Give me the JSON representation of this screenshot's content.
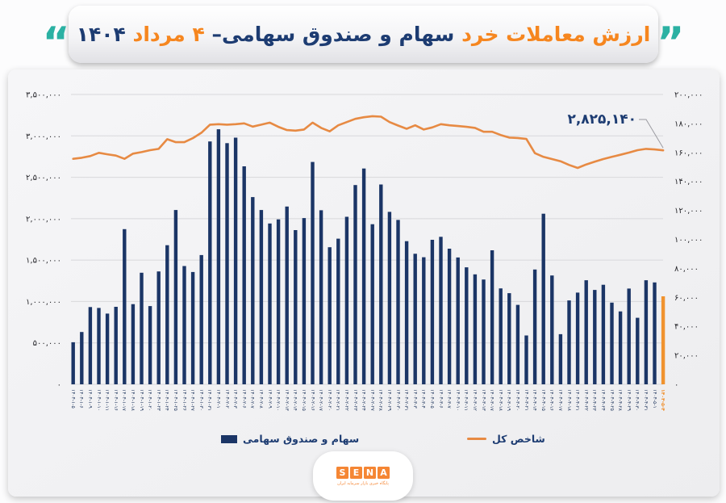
{
  "title": {
    "quote_left_glyph": "“",
    "quote_right_glyph": "”",
    "part_value": "ارزش معاملات خرد",
    "part_subject": "سهام و صندوق سهامی–",
    "part_date": "۴ مرداد",
    "part_year": "۱۴۰۴"
  },
  "legend": {
    "bars_label": "سهام و صندوق سهامی",
    "line_label": "شاخص کل"
  },
  "logo": {
    "letters": [
      "S",
      "E",
      "N",
      "A"
    ],
    "tagline": "پایگاه خبری بازار سرمایه ایران"
  },
  "colors": {
    "bar": "#1b3566",
    "bar_highlight": "#f0932f",
    "line": "#e78a43",
    "navy": "#1d3c72",
    "orange": "#f6861f",
    "teal": "#2bb1a3",
    "grid": "#d8d8db"
  },
  "chart_data": {
    "type": "bar+line",
    "title": "ارزش معاملات خرد سهام و صندوق سهامی - ۴ مرداد ۱۴۰۴",
    "grid": true,
    "legend_position": "bottom",
    "x": [
      "۱۴۰۴-۱-۵",
      "۱۴۰۴-۱-۶",
      "۱۴۰۴-۱-۹",
      "۱۴۰۴-۱-۱۰",
      "۱۴۰۴-۱-۱۱",
      "۱۴۰۴-۱-۱۶",
      "۱۴۰۴-۱-۱۷",
      "۱۴۰۴-۱-۱۸",
      "۱۴۰۴-۱-۱۹",
      "۱۴۰۴-۱-۲۰",
      "۱۴۰۴-۱-۲۳",
      "۱۴۰۴-۱-۲۴",
      "۱۴۰۴-۱-۲۵",
      "۱۴۰۴-۱-۲۶",
      "۱۴۰۴-۱-۲۷",
      "۱۴۰۴-۱-۳۰",
      "۱۴۰۴-۱-۳۱",
      "۱۴۰۴-۲-۱",
      "۱۴۰۴-۲-۲",
      "۱۴۰۴-۲-۳",
      "۱۴۰۴-۲-۶",
      "۱۴۰۴-۲-۷",
      "۱۴۰۴-۲-۸",
      "۱۴۰۴-۲-۹",
      "۱۴۰۴-۲-۱۰",
      "۱۴۰۴-۲-۱۳",
      "۱۴۰۴-۲-۱۴",
      "۱۴۰۴-۲-۱۵",
      "۱۴۰۴-۲-۱۶",
      "۱۴۰۴-۲-۱۷",
      "۱۴۰۴-۲-۲۰",
      "۱۴۰۴-۲-۲۱",
      "۱۴۰۴-۲-۲۲",
      "۱۴۰۴-۲-۲۳",
      "۱۴۰۴-۲-۲۴",
      "۱۴۰۴-۲-۲۷",
      "۱۴۰۴-۲-۲۸",
      "۱۴۰۴-۲-۲۹",
      "۱۴۰۴-۲-۳۰",
      "۱۴۰۴-۲-۳۱",
      "۱۴۰۴-۳-۳",
      "۱۴۰۴-۳-۴",
      "۱۴۰۴-۳-۵",
      "۱۴۰۴-۳-۶",
      "۱۴۰۴-۳-۷",
      "۱۴۰۴-۳-۱۰",
      "۱۴۰۴-۳-۱۱",
      "۱۴۰۴-۳-۱۲",
      "۱۴۰۴-۳-۱۳",
      "۱۴۰۴-۳-۱۷",
      "۱۴۰۴-۳-۱۸",
      "۱۴۰۴-۳-۱۹",
      "۱۴۰۴-۳-۲۰",
      "۱۴۰۴-۳-۲۱",
      "۱۴۰۴-۴-۱۴",
      "۱۴۰۴-۴-۱۵",
      "۱۴۰۴-۴-۱۶",
      "۱۴۰۴-۴-۱۷",
      "۱۴۰۴-۴-۱۸",
      "۱۴۰۴-۴-۲۱",
      "۱۴۰۴-۴-۲۲",
      "۱۴۰۴-۴-۲۳",
      "۱۴۰۴-۴-۲۴",
      "۱۴۰۴-۴-۲۵",
      "۱۴۰۴-۴-۲۸",
      "۱۴۰۴-۴-۲۹",
      "۱۴۰۴-۴-۳۰",
      "۱۴۰۴-۴-۳۱",
      "۱۴۰۴-۵-۱",
      "۱۴۰۴-۵-۴"
    ],
    "series": [
      {
        "name": "سهام و صندوق سهامی",
        "type": "bar",
        "axis": "right",
        "values": [
          29000,
          36100,
          53300,
          52700,
          48800,
          53500,
          107100,
          55300,
          77000,
          54000,
          77900,
          96000,
          120300,
          81600,
          77500,
          89200,
          167600,
          176000,
          166400,
          170200,
          150400,
          129200,
          120300,
          111000,
          113800,
          122700,
          106400,
          114700,
          153400,
          120100,
          94600,
          100500,
          115600,
          137500,
          148900,
          110500,
          137900,
          119000,
          113400,
          98800,
          90100,
          87700,
          99700,
          101800,
          93600,
          87500,
          80700,
          75900,
          72300,
          92500,
          66200,
          62900,
          54800,
          33700,
          79200,
          117700,
          75100,
          34600,
          57900,
          63300,
          71800,
          65100,
          68700,
          56400,
          50300,
          66100,
          45900,
          71800,
          70300,
          60700
        ]
      },
      {
        "name": "شاخص کل",
        "type": "line",
        "axis": "left",
        "values": [
          2723000,
          2736000,
          2756000,
          2795000,
          2778000,
          2762000,
          2723000,
          2785000,
          2804000,
          2827000,
          2843000,
          2960000,
          2924000,
          2924000,
          2973000,
          3038000,
          3135000,
          3141000,
          3135000,
          3141000,
          3151000,
          3112000,
          3135000,
          3160000,
          3109000,
          3070000,
          3063000,
          3077000,
          3160000,
          3096000,
          3054000,
          3128000,
          3167000,
          3206000,
          3225000,
          3238000,
          3232000,
          3167000,
          3125000,
          3086000,
          3128000,
          3077000,
          3102000,
          3141000,
          3128000,
          3119000,
          3109000,
          3096000,
          3050000,
          3050000,
          3011000,
          2979000,
          2975000,
          2963000,
          2791000,
          2746000,
          2720000,
          2694000,
          2649000,
          2613000,
          2655000,
          2688000,
          2720000,
          2746000,
          2772000,
          2798000,
          2827000,
          2843000,
          2836000,
          2825140
        ]
      }
    ],
    "left_axis": {
      "max": 3500000,
      "min": 0,
      "ticks": [
        "۳,۵۰۰,۰۰۰",
        "۳,۰۰۰,۰۰۰",
        "۲,۵۰۰,۰۰۰",
        "۲,۰۰۰,۰۰۰",
        "۱,۵۰۰,۰۰۰",
        "۱,۰۰۰,۰۰۰",
        "۵۰۰,۰۰۰",
        "۰"
      ]
    },
    "right_axis": {
      "max": 200000,
      "min": 0,
      "ticks": [
        "۲۰۰,۰۰۰",
        "۱۸۰,۰۰۰",
        "۱۶۰,۰۰۰",
        "۱۴۰,۰۰۰",
        "۱۲۰,۰۰۰",
        "۱۰۰,۰۰۰",
        "۸۰,۰۰۰",
        "۶۰,۰۰۰",
        "۴۰,۰۰۰",
        "۲۰,۰۰۰",
        "۰"
      ]
    },
    "annotation": {
      "text": "۲,۸۲۵,۱۴۰",
      "value": 2825140,
      "points_to": "last line point"
    },
    "highlight_last_bar": true
  }
}
